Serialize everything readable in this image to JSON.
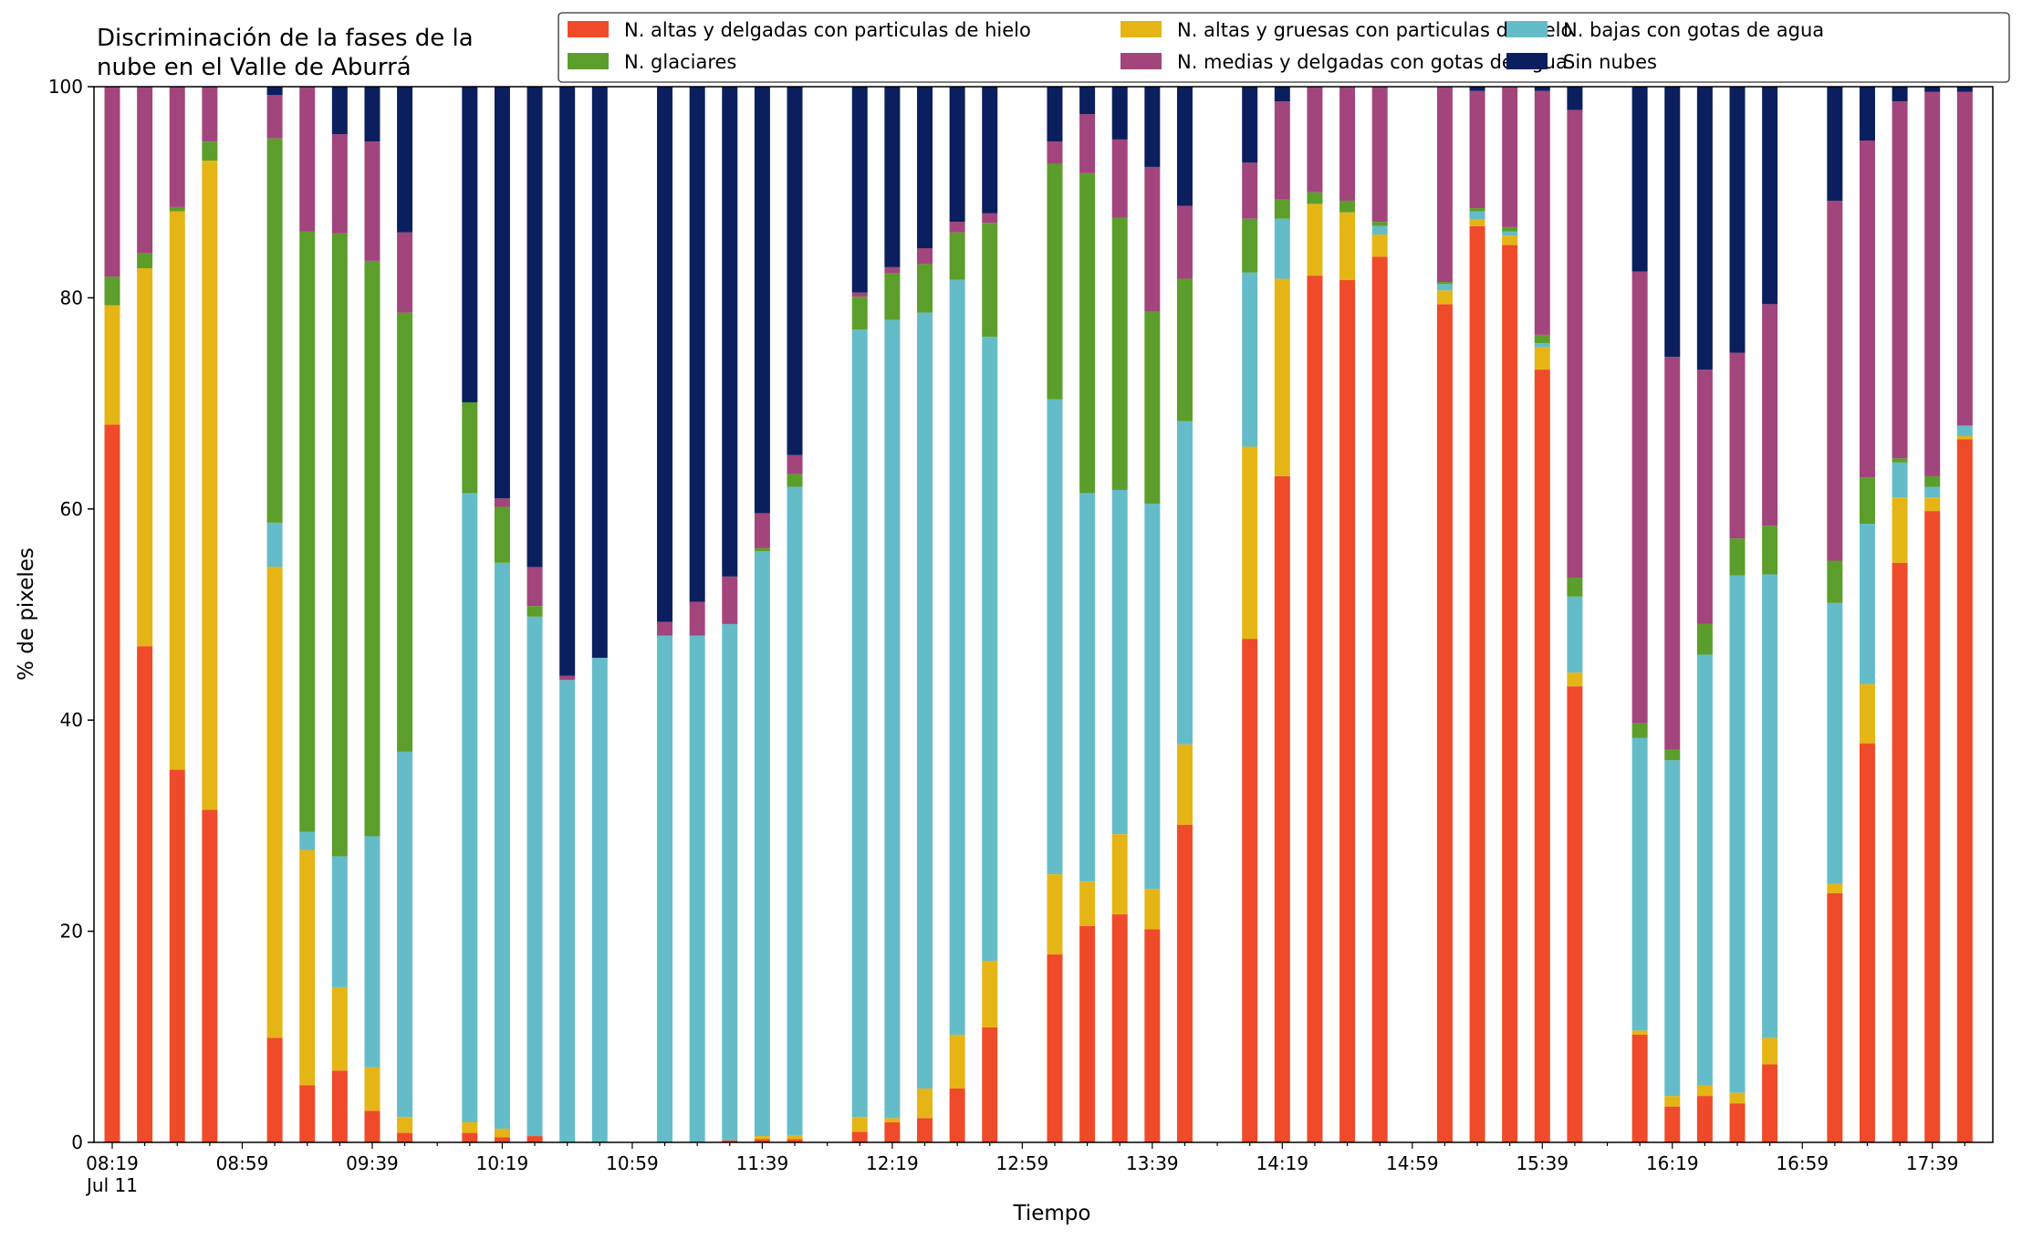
{
  "chart_data": {
    "type": "bar",
    "stacked": true,
    "title_lines": [
      "Discriminación de la fases de la",
      "nube en el Valle de Aburrá"
    ],
    "xlabel": "Tiempo",
    "ylabel": "% de pixeles",
    "ylim": [
      0,
      100
    ],
    "y_ticks": [
      "0",
      "20",
      "40",
      "60",
      "80",
      "100"
    ],
    "x_ticks": [
      "08:19",
      "08:59",
      "09:39",
      "10:19",
      "10:59",
      "11:39",
      "12:19",
      "12:59",
      "13:39",
      "14:19",
      "14:59",
      "15:39",
      "16:19",
      "16:59",
      "17:39"
    ],
    "x_tick_sublabel": "Jul 11",
    "x_range_minutes": [
      "08:19",
      "18:07"
    ],
    "grid": false,
    "legend_position": "top-right",
    "series": [
      {
        "name": "N. altas y delgadas con particulas de hielo",
        "color": "#ef4b2a"
      },
      {
        "name": "N. altas y gruesas con particulas de hielo",
        "color": "#e5b516"
      },
      {
        "name": "N. bajas con gotas de agua",
        "color": "#65bcc9"
      },
      {
        "name": "N. glaciares",
        "color": "#5c9e2b"
      },
      {
        "name": "N. medias y delgadas con gotas de agua",
        "color": "#a2457c"
      },
      {
        "name": "Sin nubes",
        "color": "#0b1f5e"
      }
    ],
    "bars": [
      {
        "time": "08:19",
        "values": [
          68.0,
          11.3,
          0,
          2.7,
          18.0,
          0
        ]
      },
      {
        "time": "08:29",
        "values": [
          47.0,
          35.8,
          0,
          1.4,
          15.8,
          0
        ]
      },
      {
        "time": "08:39",
        "values": [
          35.3,
          52.9,
          0,
          0.4,
          11.4,
          0
        ]
      },
      {
        "time": "08:49",
        "values": [
          31.5,
          61.5,
          0,
          1.8,
          5.2,
          0
        ]
      },
      {
        "time": "09:09",
        "values": [
          9.9,
          44.6,
          4.2,
          36.4,
          4.1,
          0.8
        ]
      },
      {
        "time": "09:19",
        "values": [
          5.4,
          22.3,
          1.7,
          56.9,
          13.7,
          0
        ]
      },
      {
        "time": "09:29",
        "values": [
          6.8,
          7.9,
          12.4,
          59.0,
          9.4,
          4.5
        ]
      },
      {
        "time": "09:39",
        "values": [
          3.0,
          4.1,
          21.9,
          54.5,
          11.3,
          5.2
        ]
      },
      {
        "time": "09:49",
        "values": [
          0.9,
          1.5,
          34.6,
          41.6,
          7.6,
          13.8
        ]
      },
      {
        "time": "10:09",
        "values": [
          0.9,
          1.0,
          59.6,
          8.6,
          0,
          29.9
        ]
      },
      {
        "time": "10:19",
        "values": [
          0.5,
          0.8,
          53.6,
          5.3,
          0.8,
          39.0
        ]
      },
      {
        "time": "10:29",
        "values": [
          0.6,
          0,
          49.2,
          1.0,
          3.7,
          45.5
        ]
      },
      {
        "time": "10:39",
        "values": [
          0,
          0,
          43.8,
          0,
          0.4,
          55.8
        ]
      },
      {
        "time": "10:49",
        "values": [
          0,
          0,
          45.9,
          0,
          0,
          54.1
        ]
      },
      {
        "time": "11:09",
        "values": [
          0,
          0,
          48.0,
          0,
          1.3,
          50.7
        ]
      },
      {
        "time": "11:19",
        "values": [
          0,
          0,
          48.0,
          0,
          3.2,
          48.8
        ]
      },
      {
        "time": "11:29",
        "values": [
          0.2,
          0,
          48.9,
          0,
          4.5,
          46.4
        ]
      },
      {
        "time": "11:39",
        "values": [
          0.3,
          0.3,
          55.4,
          0.3,
          3.3,
          40.4
        ]
      },
      {
        "time": "11:49",
        "values": [
          0.3,
          0.4,
          61.4,
          1.2,
          1.8,
          34.9
        ]
      },
      {
        "time": "12:09",
        "values": [
          1.0,
          1.4,
          74.6,
          3.1,
          0.4,
          19.5
        ]
      },
      {
        "time": "12:19",
        "values": [
          1.9,
          0.4,
          75.6,
          4.4,
          0.6,
          17.1
        ]
      },
      {
        "time": "12:29",
        "values": [
          2.3,
          2.8,
          73.5,
          4.6,
          1.5,
          15.3
        ]
      },
      {
        "time": "12:39",
        "values": [
          5.1,
          5.1,
          71.5,
          4.5,
          1.0,
          12.8
        ]
      },
      {
        "time": "12:49",
        "values": [
          10.9,
          6.3,
          59.1,
          10.8,
          0.9,
          12.0
        ]
      },
      {
        "time": "13:09",
        "values": [
          17.8,
          7.6,
          45.0,
          22.3,
          2.1,
          5.2
        ]
      },
      {
        "time": "13:19",
        "values": [
          20.5,
          4.2,
          36.8,
          30.3,
          5.6,
          2.6
        ]
      },
      {
        "time": "13:29",
        "values": [
          21.6,
          7.6,
          32.6,
          25.8,
          7.4,
          5.0
        ]
      },
      {
        "time": "13:39",
        "values": [
          20.2,
          3.8,
          36.5,
          18.2,
          13.7,
          7.6
        ]
      },
      {
        "time": "13:49",
        "values": [
          30.1,
          7.6,
          30.6,
          13.5,
          6.9,
          11.3
        ]
      },
      {
        "time": "14:09",
        "values": [
          47.7,
          18.2,
          16.5,
          5.1,
          5.3,
          7.2
        ]
      },
      {
        "time": "14:19",
        "values": [
          63.1,
          18.7,
          5.7,
          1.8,
          9.3,
          1.4
        ]
      },
      {
        "time": "14:29",
        "values": [
          82.1,
          6.8,
          0,
          1.1,
          10.0,
          0
        ]
      },
      {
        "time": "14:39",
        "values": [
          81.7,
          6.4,
          0,
          1.1,
          10.8,
          0
        ]
      },
      {
        "time": "14:49",
        "values": [
          83.9,
          2.1,
          0.8,
          0.4,
          12.8,
          0
        ]
      },
      {
        "time": "15:09",
        "values": [
          79.4,
          1.3,
          0.6,
          0.2,
          18.5,
          0
        ]
      },
      {
        "time": "15:19",
        "values": [
          86.8,
          0.6,
          0.8,
          0.3,
          11.1,
          0.4
        ]
      },
      {
        "time": "15:29",
        "values": [
          85.0,
          0.9,
          0.4,
          0.4,
          13.3,
          0
        ]
      },
      {
        "time": "15:39",
        "values": [
          73.2,
          2.1,
          0.4,
          0.8,
          23.1,
          0.4
        ]
      },
      {
        "time": "15:49",
        "values": [
          43.2,
          1.3,
          7.2,
          1.8,
          44.3,
          2.2
        ]
      },
      {
        "time": "16:09",
        "values": [
          10.2,
          0.4,
          27.7,
          1.4,
          42.8,
          17.5
        ]
      },
      {
        "time": "16:19",
        "values": [
          3.4,
          1.0,
          31.8,
          1.0,
          37.2,
          25.6
        ]
      },
      {
        "time": "16:29",
        "values": [
          4.4,
          1.0,
          40.8,
          2.9,
          24.1,
          26.8
        ]
      },
      {
        "time": "16:39",
        "values": [
          3.7,
          1.0,
          49.0,
          3.5,
          17.6,
          25.2
        ]
      },
      {
        "time": "16:49",
        "values": [
          7.4,
          2.5,
          43.9,
          4.6,
          21.0,
          20.6
        ]
      },
      {
        "time": "17:09",
        "values": [
          23.6,
          0.9,
          26.6,
          4.0,
          34.1,
          10.8
        ]
      },
      {
        "time": "17:19",
        "values": [
          37.8,
          5.6,
          15.2,
          4.4,
          31.9,
          5.1
        ]
      },
      {
        "time": "17:29",
        "values": [
          54.9,
          6.2,
          3.3,
          0.4,
          33.8,
          1.4
        ]
      },
      {
        "time": "17:39",
        "values": [
          59.8,
          1.3,
          1.0,
          1.0,
          36.4,
          0.5
        ]
      },
      {
        "time": "17:49",
        "values": [
          66.6,
          0.3,
          1.0,
          0,
          31.6,
          0.5
        ]
      }
    ]
  }
}
